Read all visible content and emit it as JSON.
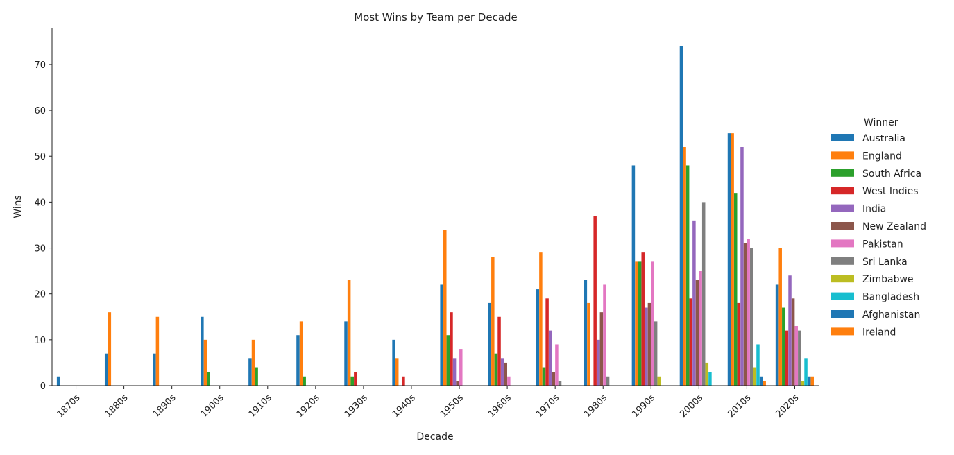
{
  "chart_data": {
    "type": "bar",
    "title": "Most Wins by Team per Decade",
    "xlabel": "Decade",
    "ylabel": "Wins",
    "ylim": [
      0,
      78
    ],
    "yticks": [
      0,
      10,
      20,
      30,
      40,
      50,
      60,
      70
    ],
    "grid": false,
    "legend_title": "Winner",
    "legend_placement": "right",
    "categories": [
      "1870s",
      "1880s",
      "1890s",
      "1900s",
      "1910s",
      "1920s",
      "1930s",
      "1940s",
      "1950s",
      "1960s",
      "1970s",
      "1980s",
      "1990s",
      "2000s",
      "2010s",
      "2020s"
    ],
    "series": [
      {
        "name": "Australia",
        "color": "#1f77b4",
        "values": [
          2,
          7,
          7,
          15,
          6,
          11,
          14,
          10,
          22,
          18,
          21,
          23,
          48,
          74,
          55,
          22
        ]
      },
      {
        "name": "England",
        "color": "#ff7f0e",
        "values": [
          0,
          16,
          15,
          10,
          10,
          14,
          23,
          6,
          34,
          28,
          29,
          18,
          27,
          52,
          55,
          30
        ]
      },
      {
        "name": "South Africa",
        "color": "#2ca02c",
        "values": [
          0,
          0,
          0,
          3,
          4,
          2,
          2,
          0,
          11,
          7,
          4,
          0,
          27,
          48,
          42,
          17
        ]
      },
      {
        "name": "West Indies",
        "color": "#d62728",
        "values": [
          0,
          0,
          0,
          0,
          0,
          0,
          3,
          2,
          16,
          15,
          19,
          37,
          29,
          19,
          18,
          12
        ]
      },
      {
        "name": "India",
        "color": "#9467bd",
        "values": [
          0,
          0,
          0,
          0,
          0,
          0,
          0,
          0,
          6,
          6,
          12,
          10,
          17,
          36,
          52,
          24
        ]
      },
      {
        "name": "New Zealand",
        "color": "#8c564b",
        "values": [
          0,
          0,
          0,
          0,
          0,
          0,
          0,
          0,
          1,
          5,
          3,
          16,
          18,
          23,
          31,
          19
        ]
      },
      {
        "name": "Pakistan",
        "color": "#e377c2",
        "values": [
          0,
          0,
          0,
          0,
          0,
          0,
          0,
          0,
          8,
          2,
          9,
          22,
          27,
          25,
          32,
          13
        ]
      },
      {
        "name": "Sri Lanka",
        "color": "#7f7f7f",
        "values": [
          0,
          0,
          0,
          0,
          0,
          0,
          0,
          0,
          0,
          0,
          1,
          2,
          14,
          40,
          30,
          12
        ]
      },
      {
        "name": "Zimbabwe",
        "color": "#bcbd22",
        "values": [
          0,
          0,
          0,
          0,
          0,
          0,
          0,
          0,
          0,
          0,
          0,
          0,
          2,
          5,
          4,
          1
        ]
      },
      {
        "name": "Bangladesh",
        "color": "#17becf",
        "values": [
          0,
          0,
          0,
          0,
          0,
          0,
          0,
          0,
          0,
          0,
          0,
          0,
          0,
          3,
          9,
          6
        ]
      },
      {
        "name": "Afghanistan",
        "color": "#1f77b4",
        "values": [
          0,
          0,
          0,
          0,
          0,
          0,
          0,
          0,
          0,
          0,
          0,
          0,
          0,
          0,
          2,
          2
        ]
      },
      {
        "name": "Ireland",
        "color": "#ff7f0e",
        "values": [
          0,
          0,
          0,
          0,
          0,
          0,
          0,
          0,
          0,
          0,
          0,
          0,
          0,
          0,
          1,
          2
        ]
      }
    ]
  }
}
